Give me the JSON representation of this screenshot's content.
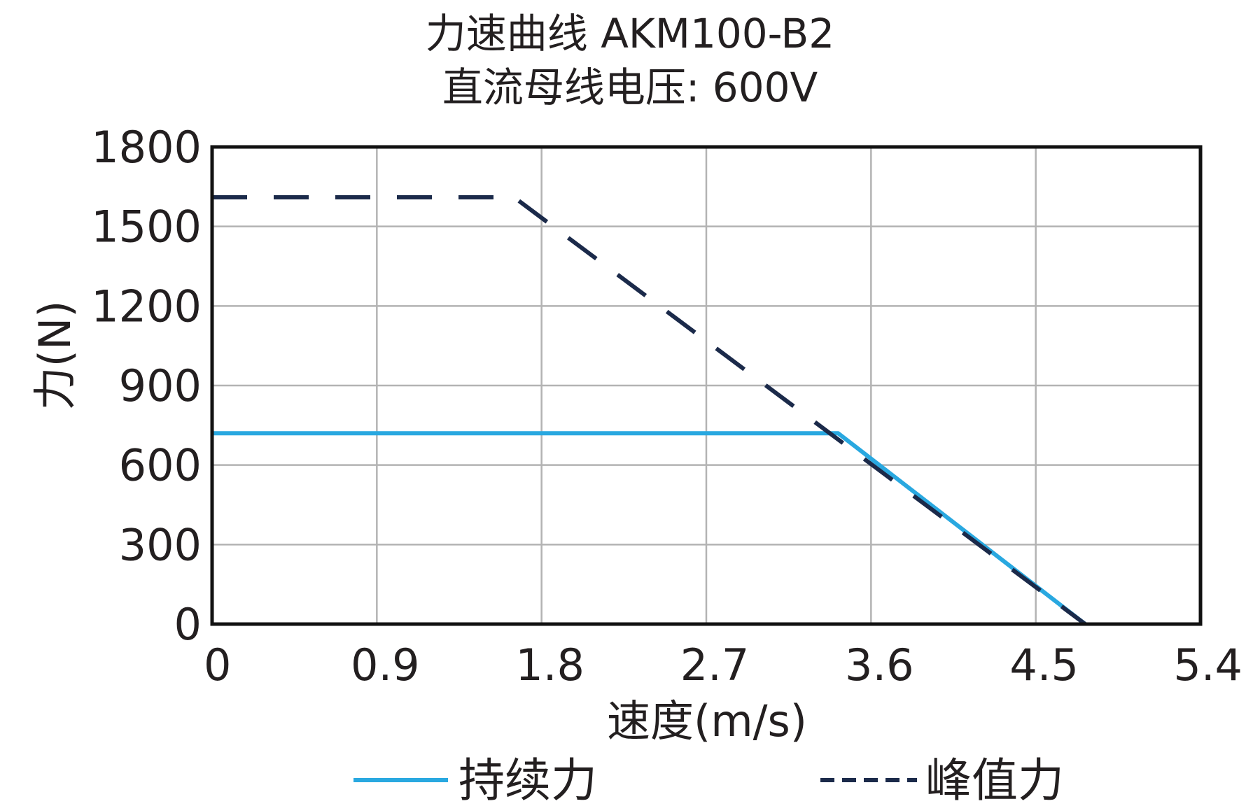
{
  "chart_data": {
    "type": "line",
    "title": "力速曲线 AKM100-B2",
    "subtitle": "直流母线电压: 600V",
    "xlabel": "速度(m/s)",
    "ylabel": "力(N)",
    "xlim": [
      0,
      5.4
    ],
    "ylim": [
      0,
      1800
    ],
    "xticks": [
      "0",
      "0.9",
      "1.8",
      "2.7",
      "3.6",
      "4.5",
      "5.4"
    ],
    "yticks": [
      "0",
      "300",
      "600",
      "900",
      "1200",
      "1500",
      "1800"
    ],
    "grid": true,
    "legend_position": "bottom",
    "series": [
      {
        "name": "持续力",
        "style": "solid",
        "color": "#29a8e0",
        "x": [
          0,
          3.42,
          4.77
        ],
        "y": [
          720,
          720,
          0
        ]
      },
      {
        "name": "峰值力",
        "style": "dashed",
        "color": "#1b2a4a",
        "x": [
          0,
          1.65,
          4.77
        ],
        "y": [
          1610,
          1610,
          0
        ]
      }
    ]
  }
}
